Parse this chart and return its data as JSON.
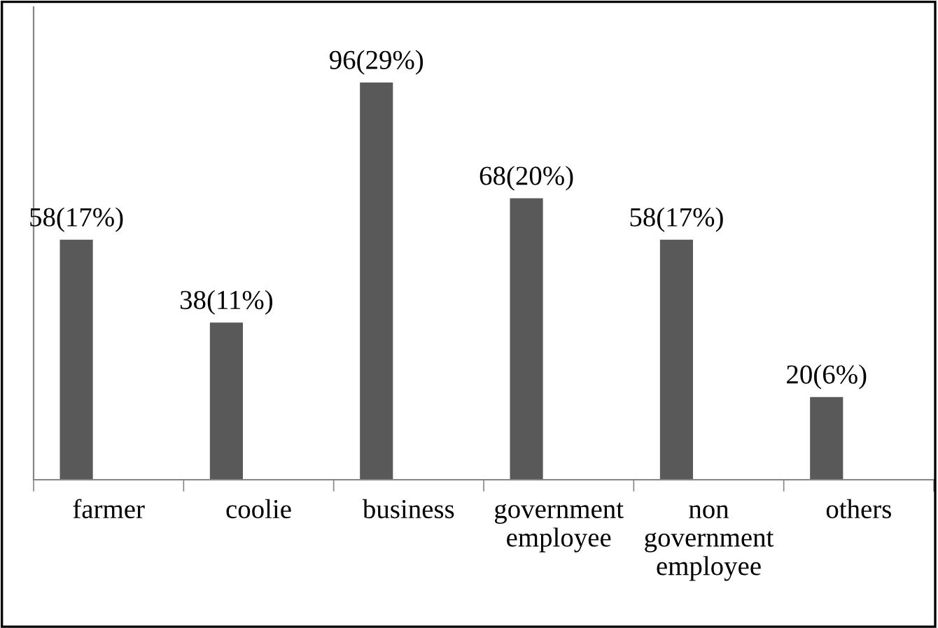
{
  "chart_data": {
    "type": "bar",
    "categories": [
      "farmer",
      "coolie",
      "business",
      "government\nemployee",
      "non\ngovernment\nemployee",
      "others"
    ],
    "values": [
      58,
      38,
      96,
      68,
      58,
      20
    ],
    "value_labels": [
      "58(17%)",
      "38(11%)",
      "96(29%)",
      "68(20%)",
      "58(17%)",
      "20(6%)"
    ],
    "color": "#595959",
    "grid": false,
    "legend": false
  }
}
